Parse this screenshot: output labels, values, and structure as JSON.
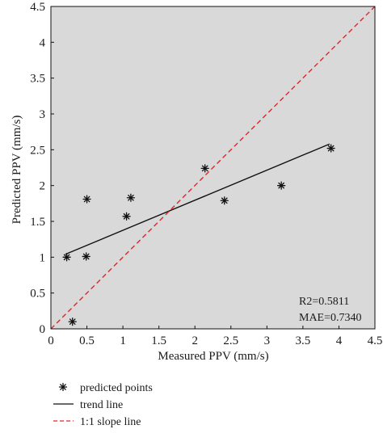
{
  "chart_data": {
    "type": "scatter",
    "xlabel": "Measured PPV (mm/s)",
    "ylabel": "Predicted PPV (mm/s)",
    "xlim": [
      0,
      4.5
    ],
    "ylim": [
      0,
      4.5
    ],
    "x_ticks": [
      "0",
      "0.5",
      "1",
      "1.5",
      "2",
      "2.5",
      "3",
      "3.5",
      "4",
      "4.5"
    ],
    "y_ticks": [
      "0",
      "0.5",
      "1",
      "1.5",
      "2",
      "2.5",
      "3",
      "3.5",
      "4",
      "4.5"
    ],
    "grid": false,
    "background_color": "#d9d9d9",
    "series": [
      {
        "name": "predicted points",
        "kind": "scatter",
        "marker": "asterisk",
        "color": "#111111",
        "x": [
          0.22,
          0.3,
          0.49,
          0.5,
          1.05,
          1.11,
          2.14,
          2.41,
          3.2,
          3.89
        ],
        "y": [
          1.0,
          0.1,
          1.01,
          1.81,
          1.57,
          1.83,
          2.24,
          1.79,
          2.0,
          2.52
        ]
      },
      {
        "name": "trend line",
        "kind": "line",
        "color": "#111111",
        "dash": "solid",
        "x": [
          0.2,
          3.87
        ],
        "y": [
          1.04,
          2.58
        ]
      },
      {
        "name": "1:1 slope line",
        "kind": "line",
        "color": "#e0262a",
        "dash": "dashed",
        "x": [
          0,
          4.5
        ],
        "y": [
          0,
          4.5
        ]
      }
    ],
    "annotations": [
      "R2=0.5811",
      "MAE=0.7340"
    ],
    "legend_position": "bottom-left, below plot"
  }
}
